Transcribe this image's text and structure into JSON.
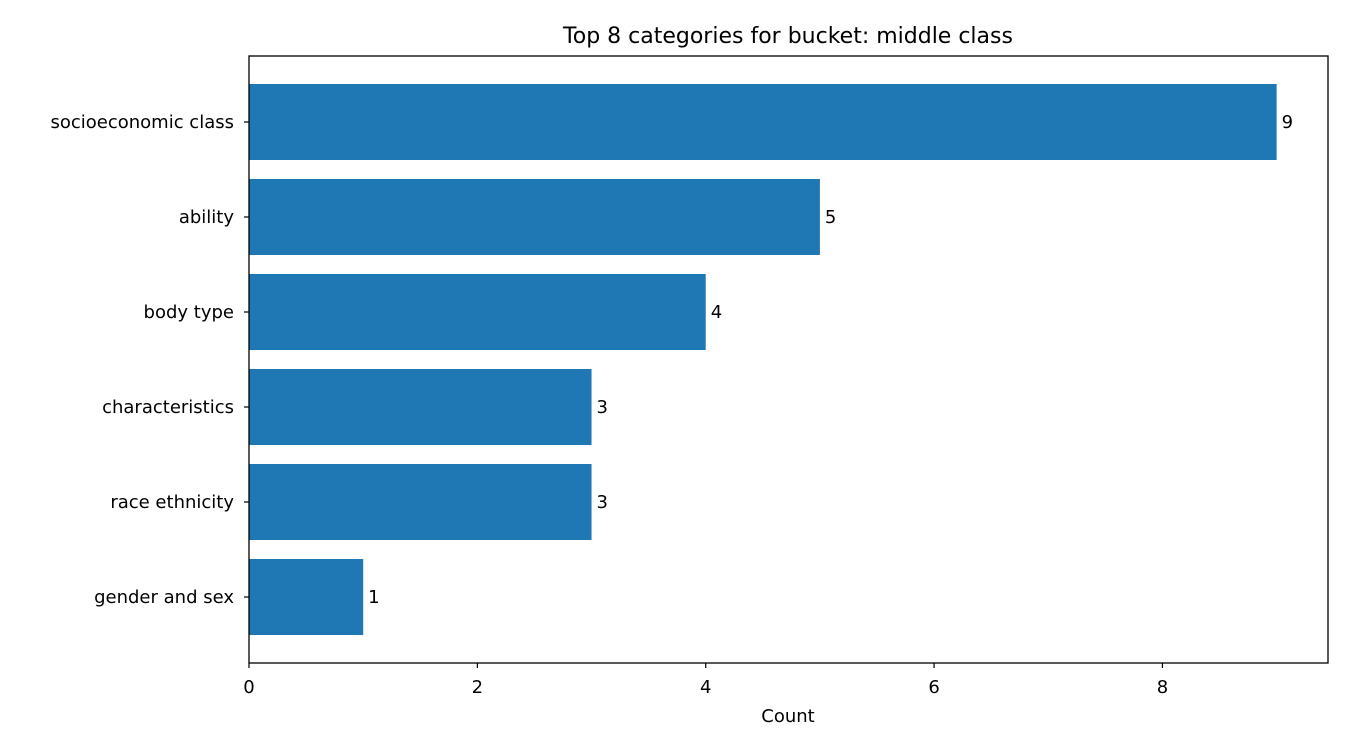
{
  "chart_data": {
    "type": "bar",
    "orientation": "horizontal",
    "title": "Top 8 categories for bucket: middle class",
    "xlabel": "Count",
    "ylabel": "",
    "categories": [
      "socioeconomic class",
      "ability",
      "body type",
      "characteristics",
      "race ethnicity",
      "gender and sex"
    ],
    "values": [
      9,
      5,
      4,
      3,
      3,
      1
    ],
    "xlim": [
      0,
      9.45
    ],
    "xticks": [
      0,
      2,
      4,
      6,
      8
    ],
    "grid": false,
    "legend": "none",
    "bar_color": "#1f77b4",
    "data_labels": true
  }
}
